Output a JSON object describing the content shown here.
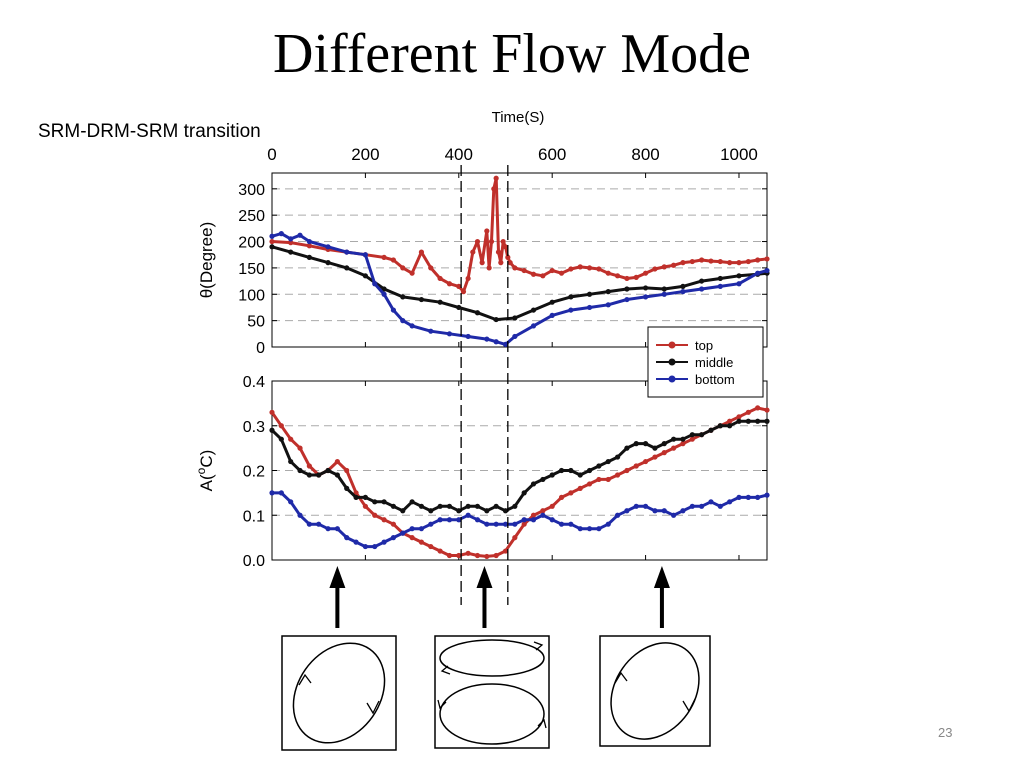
{
  "slide": {
    "title": "Different Flow Mode",
    "subtitle": "SRM-DRM-SRM transition",
    "page_number": "23"
  },
  "colors": {
    "top": "#c0302b",
    "middle": "#111111",
    "bottom": "#1f2aa8"
  },
  "chart_data": [
    {
      "type": "line",
      "panel": "theta",
      "xlabel": "Time(S)",
      "x_axis_position": "top",
      "xlim": [
        0,
        1060
      ],
      "x_ticks": [
        0,
        200,
        400,
        600,
        800,
        1000
      ],
      "ylabel": "θ(Degree)",
      "ylim": [
        0,
        330
      ],
      "y_ticks": [
        0,
        50,
        100,
        150,
        200,
        250,
        300
      ],
      "grid": "horizontal dashed",
      "series": [
        {
          "name": "top",
          "x": [
            0,
            40,
            80,
            120,
            160,
            200,
            240,
            260,
            280,
            300,
            320,
            340,
            360,
            380,
            400,
            410,
            420,
            430,
            440,
            450,
            460,
            465,
            470,
            475,
            480,
            485,
            490,
            495,
            500,
            505,
            510,
            520,
            540,
            560,
            580,
            600,
            620,
            640,
            660,
            680,
            700,
            720,
            740,
            760,
            780,
            800,
            820,
            840,
            860,
            880,
            900,
            920,
            940,
            960,
            980,
            1000,
            1020,
            1040,
            1060
          ],
          "y": [
            200,
            198,
            192,
            185,
            180,
            175,
            170,
            165,
            150,
            140,
            180,
            150,
            130,
            120,
            115,
            105,
            130,
            180,
            200,
            160,
            220,
            150,
            200,
            300,
            320,
            180,
            160,
            200,
            190,
            170,
            160,
            150,
            145,
            138,
            135,
            145,
            140,
            148,
            152,
            150,
            148,
            140,
            135,
            130,
            132,
            140,
            148,
            152,
            155,
            160,
            162,
            165,
            163,
            162,
            160,
            160,
            162,
            165,
            167
          ]
        },
        {
          "name": "middle",
          "x": [
            0,
            40,
            80,
            120,
            160,
            200,
            240,
            280,
            320,
            360,
            400,
            440,
            480,
            520,
            560,
            600,
            640,
            680,
            720,
            760,
            800,
            840,
            880,
            920,
            960,
            1000,
            1040,
            1060
          ],
          "y": [
            190,
            180,
            170,
            160,
            150,
            135,
            110,
            95,
            90,
            85,
            75,
            65,
            52,
            55,
            70,
            85,
            95,
            100,
            105,
            110,
            112,
            110,
            115,
            125,
            130,
            135,
            138,
            140
          ]
        },
        {
          "name": "bottom",
          "x": [
            0,
            20,
            40,
            60,
            80,
            120,
            160,
            200,
            220,
            240,
            260,
            280,
            300,
            340,
            380,
            420,
            460,
            480,
            500,
            520,
            560,
            600,
            640,
            680,
            720,
            760,
            800,
            840,
            880,
            920,
            960,
            1000,
            1040,
            1060
          ],
          "y": [
            210,
            215,
            205,
            212,
            200,
            190,
            180,
            175,
            120,
            100,
            70,
            50,
            40,
            30,
            25,
            20,
            15,
            10,
            5,
            20,
            40,
            60,
            70,
            75,
            80,
            90,
            95,
            100,
            105,
            110,
            115,
            120,
            140,
            145
          ]
        }
      ],
      "vertical_markers": [
        405,
        505
      ]
    },
    {
      "type": "line",
      "panel": "amplitude",
      "xlabel": "",
      "xlim": [
        0,
        1060
      ],
      "ylabel": "A(",
      "ylabel_sup": "o",
      "ylabel_unit": "C)",
      "ylim": [
        0,
        0.4
      ],
      "y_ticks": [
        "0.0",
        "0.1",
        "0.2",
        "0.3",
        "0.4"
      ],
      "grid": "horizontal dashed",
      "legend_position": "top-right",
      "series": [
        {
          "name": "top",
          "x": [
            0,
            20,
            40,
            60,
            80,
            100,
            120,
            140,
            160,
            180,
            200,
            220,
            240,
            260,
            280,
            300,
            320,
            340,
            360,
            380,
            400,
            420,
            440,
            460,
            480,
            500,
            520,
            540,
            560,
            580,
            600,
            620,
            640,
            660,
            680,
            700,
            720,
            740,
            760,
            780,
            800,
            820,
            840,
            860,
            880,
            900,
            920,
            940,
            960,
            980,
            1000,
            1020,
            1040,
            1060
          ],
          "y": [
            0.33,
            0.3,
            0.27,
            0.25,
            0.21,
            0.19,
            0.2,
            0.22,
            0.2,
            0.15,
            0.12,
            0.1,
            0.09,
            0.08,
            0.06,
            0.05,
            0.04,
            0.03,
            0.02,
            0.01,
            0.01,
            0.015,
            0.01,
            0.008,
            0.01,
            0.02,
            0.05,
            0.08,
            0.1,
            0.11,
            0.12,
            0.14,
            0.15,
            0.16,
            0.17,
            0.18,
            0.18,
            0.19,
            0.2,
            0.21,
            0.22,
            0.23,
            0.24,
            0.25,
            0.26,
            0.27,
            0.28,
            0.29,
            0.3,
            0.31,
            0.32,
            0.33,
            0.34,
            0.335
          ]
        },
        {
          "name": "middle",
          "x": [
            0,
            20,
            40,
            60,
            80,
            100,
            120,
            140,
            160,
            180,
            200,
            220,
            240,
            260,
            280,
            300,
            320,
            340,
            360,
            380,
            400,
            420,
            440,
            460,
            480,
            500,
            520,
            540,
            560,
            580,
            600,
            620,
            640,
            660,
            680,
            700,
            720,
            740,
            760,
            780,
            800,
            820,
            840,
            860,
            880,
            900,
            920,
            940,
            960,
            980,
            1000,
            1020,
            1040,
            1060
          ],
          "y": [
            0.29,
            0.27,
            0.22,
            0.2,
            0.19,
            0.19,
            0.2,
            0.19,
            0.16,
            0.14,
            0.14,
            0.13,
            0.13,
            0.12,
            0.11,
            0.13,
            0.12,
            0.11,
            0.12,
            0.12,
            0.11,
            0.12,
            0.12,
            0.11,
            0.12,
            0.11,
            0.12,
            0.15,
            0.17,
            0.18,
            0.19,
            0.2,
            0.2,
            0.19,
            0.2,
            0.21,
            0.22,
            0.23,
            0.25,
            0.26,
            0.26,
            0.25,
            0.26,
            0.27,
            0.27,
            0.28,
            0.28,
            0.29,
            0.3,
            0.3,
            0.31,
            0.31,
            0.31,
            0.31
          ]
        },
        {
          "name": "bottom",
          "x": [
            0,
            20,
            40,
            60,
            80,
            100,
            120,
            140,
            160,
            180,
            200,
            220,
            240,
            260,
            280,
            300,
            320,
            340,
            360,
            380,
            400,
            420,
            440,
            460,
            480,
            500,
            520,
            540,
            560,
            580,
            600,
            620,
            640,
            660,
            680,
            700,
            720,
            740,
            760,
            780,
            800,
            820,
            840,
            860,
            880,
            900,
            920,
            940,
            960,
            980,
            1000,
            1020,
            1040,
            1060
          ],
          "y": [
            0.15,
            0.15,
            0.13,
            0.1,
            0.08,
            0.08,
            0.07,
            0.07,
            0.05,
            0.04,
            0.03,
            0.03,
            0.04,
            0.05,
            0.06,
            0.07,
            0.07,
            0.08,
            0.09,
            0.09,
            0.09,
            0.1,
            0.09,
            0.08,
            0.08,
            0.08,
            0.08,
            0.09,
            0.09,
            0.1,
            0.09,
            0.08,
            0.08,
            0.07,
            0.07,
            0.07,
            0.08,
            0.1,
            0.11,
            0.12,
            0.12,
            0.11,
            0.11,
            0.1,
            0.11,
            0.12,
            0.12,
            0.13,
            0.12,
            0.13,
            0.14,
            0.14,
            0.14,
            0.145
          ]
        }
      ],
      "vertical_markers": [
        405,
        505
      ]
    }
  ],
  "legend": [
    {
      "label": "top",
      "color": "#c0302b"
    },
    {
      "label": "middle",
      "color": "#111111"
    },
    {
      "label": "bottom",
      "color": "#1f2aa8"
    }
  ],
  "annotations": {
    "arrows": [
      {
        "x_time": 140,
        "target": "mode-diagram-1"
      },
      {
        "x_time": 455,
        "target": "mode-diagram-2"
      },
      {
        "x_time": 835,
        "target": "mode-diagram-3"
      }
    ],
    "mode_diagrams": [
      {
        "name": "single-roll",
        "rolls": 1
      },
      {
        "name": "double-roll",
        "rolls": 2
      },
      {
        "name": "single-roll",
        "rolls": 1
      }
    ]
  }
}
